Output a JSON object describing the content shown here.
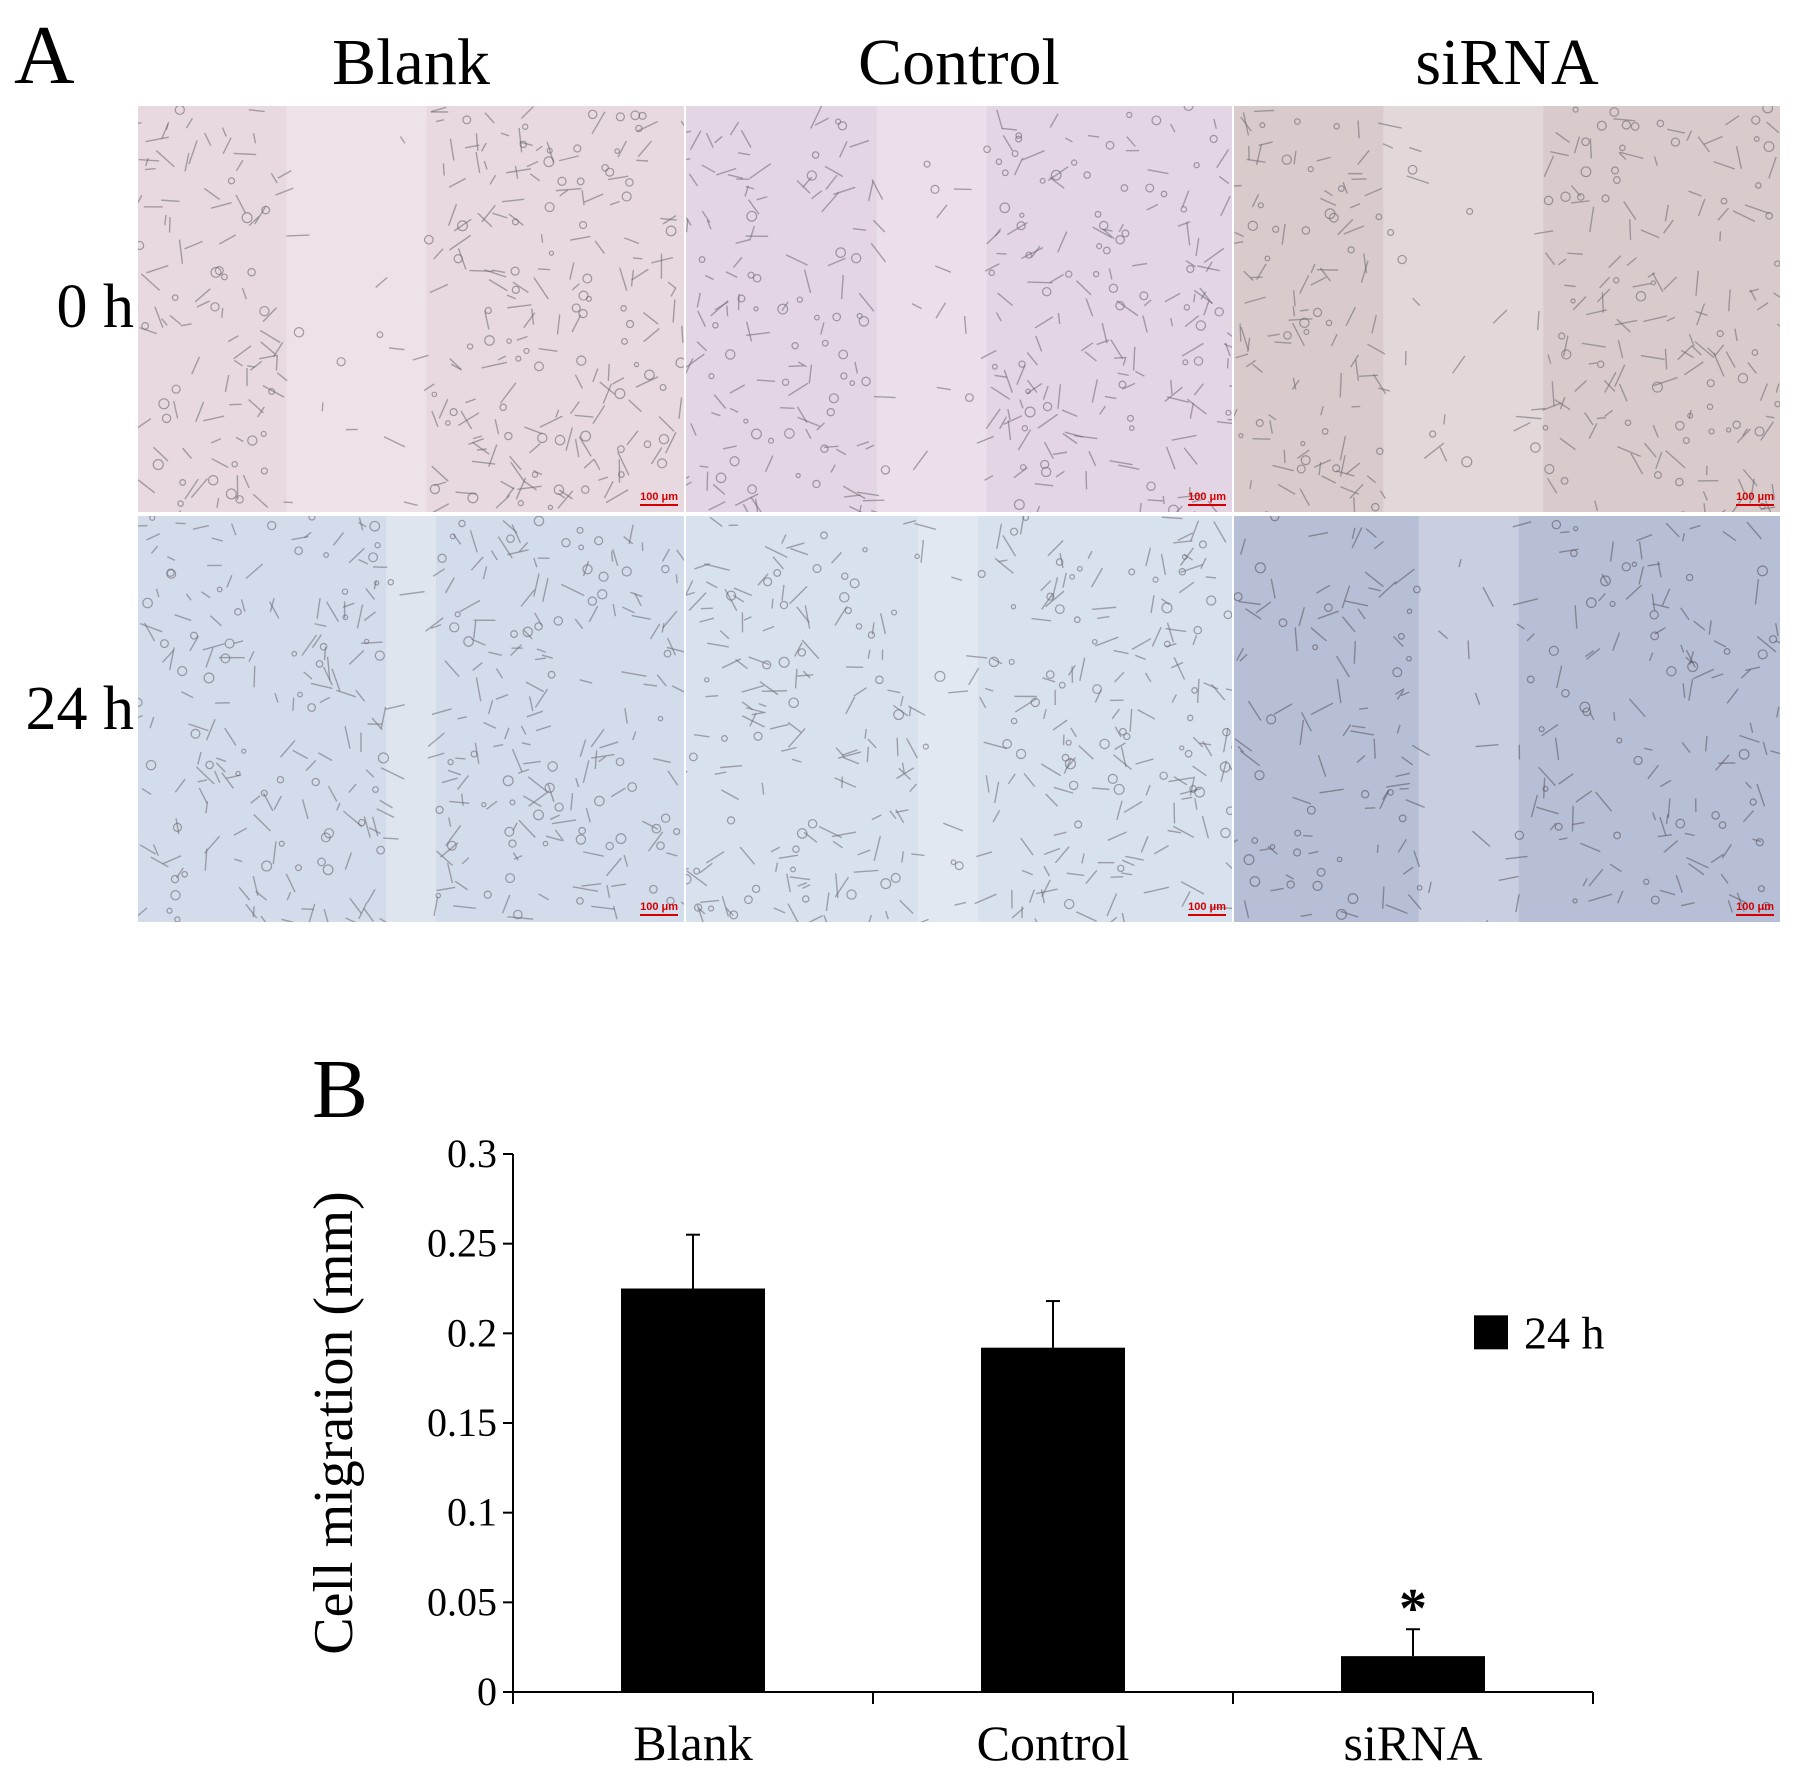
{
  "figure": {
    "panel_a_label": "A",
    "panel_b_label": "B",
    "column_headers": [
      "Blank",
      "Control",
      "siRNA"
    ],
    "row_headers": [
      "0 h",
      "24 h"
    ],
    "scale_bar_label": "100 μm",
    "micrographs": [
      {
        "row": "0 h",
        "column": "Blank",
        "tint": "#e7d9df"
      },
      {
        "row": "0 h",
        "column": "Control",
        "tint": "#e3d5e3"
      },
      {
        "row": "0 h",
        "column": "siRNA",
        "tint": "#d9cbcc"
      },
      {
        "row": "24 h",
        "column": "Blank",
        "tint": "#d3dcea"
      },
      {
        "row": "24 h",
        "column": "Control",
        "tint": "#d8e1ee"
      },
      {
        "row": "24 h",
        "column": "siRNA",
        "tint": "#b7bfd6"
      }
    ]
  },
  "chart_data": {
    "type": "bar",
    "categories": [
      "Blank",
      "Control",
      "siRNA"
    ],
    "series": [
      {
        "name": "24 h",
        "values": [
          0.225,
          0.192,
          0.02
        ],
        "errors": [
          0.03,
          0.026,
          0.015
        ],
        "color": "#000000"
      }
    ],
    "ylabel": "Cell migration (mm)",
    "xlabel": "",
    "ylim": [
      0,
      0.3
    ],
    "yticks": [
      "0",
      "0.05",
      "0.1",
      "0.15",
      "0.2",
      "0.25",
      "0.3"
    ],
    "annotations": [
      {
        "category": "siRNA",
        "text": "*"
      }
    ],
    "legend_position": "right",
    "grid": false
  }
}
